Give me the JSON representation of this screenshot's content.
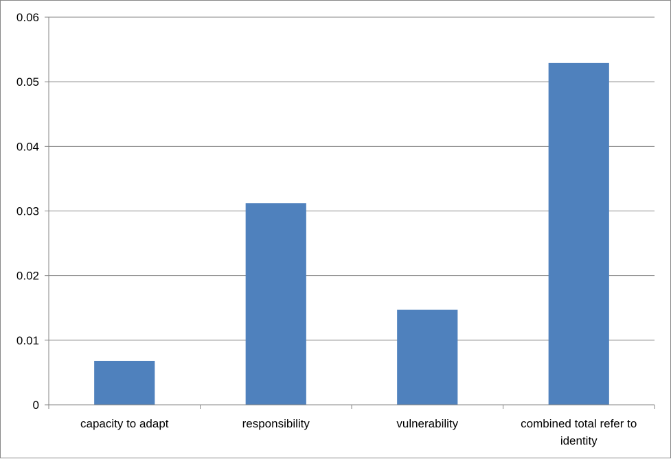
{
  "chart_data": {
    "type": "bar",
    "categories": [
      [
        "capacity to adapt"
      ],
      [
        "responsibility"
      ],
      [
        "vulnerability"
      ],
      [
        "combined total refer to",
        "identity"
      ]
    ],
    "values": [
      0.0068,
      0.0312,
      0.0147,
      0.0529
    ],
    "y_ticks": [
      "0",
      "0.01",
      "0.02",
      "0.03",
      "0.04",
      "0.05",
      "0.06"
    ],
    "ylim": [
      0,
      0.06
    ],
    "grid": true,
    "legend": "none",
    "bar_color": "#4F81BD",
    "grid_color": "#868686",
    "axis_color": "#868686"
  }
}
